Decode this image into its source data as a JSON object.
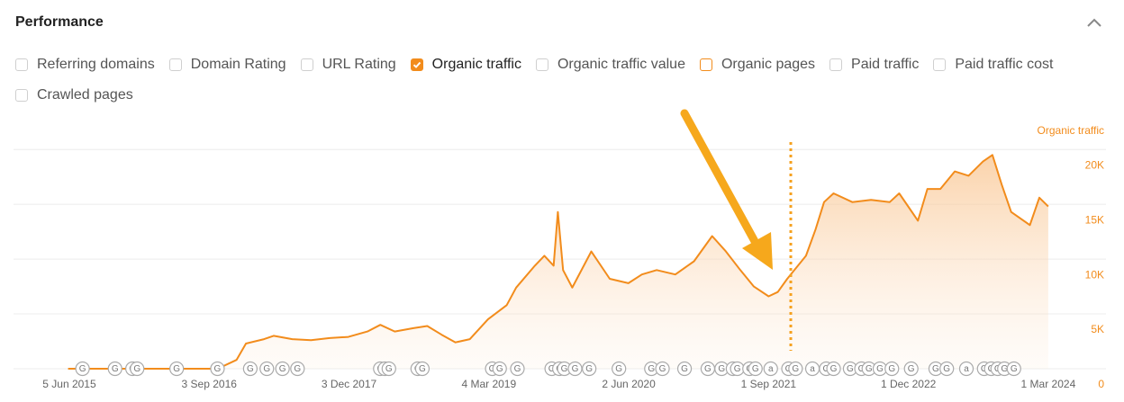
{
  "header": {
    "title": "Performance"
  },
  "filters": [
    {
      "label": "Referring domains",
      "checked": false
    },
    {
      "label": "Domain Rating",
      "checked": false
    },
    {
      "label": "URL Rating",
      "checked": false
    },
    {
      "label": "Organic traffic",
      "checked": true,
      "color": "#f28c1c"
    },
    {
      "label": "Organic traffic value",
      "checked": false
    },
    {
      "label": "Organic pages",
      "checked": false,
      "color": "#f28c1c"
    },
    {
      "label": "Paid traffic",
      "checked": false
    },
    {
      "label": "Paid traffic cost",
      "checked": false
    },
    {
      "label": "Crawled pages",
      "checked": false
    }
  ],
  "chart_data": {
    "type": "area",
    "x": [
      "2015-06-01",
      "2016-01-01",
      "2016-10-01",
      "2016-12-01",
      "2017-01-01",
      "2017-03-01",
      "2017-04-01",
      "2017-06-01",
      "2017-08-01",
      "2017-10-01",
      "2017-12-01",
      "2018-02-01",
      "2018-03-15",
      "2018-05-01",
      "2018-07-01",
      "2018-08-15",
      "2018-10-01",
      "2018-11-15",
      "2019-01-01",
      "2019-03-01",
      "2019-05-01",
      "2019-06-01",
      "2019-08-01",
      "2019-09-01",
      "2019-10-01",
      "2019-10-15",
      "2019-11-01",
      "2019-12-01",
      "2020-02-01",
      "2020-04-01",
      "2020-06-01",
      "2020-07-15",
      "2020-09-01",
      "2020-11-01",
      "2021-01-01",
      "2021-03-01",
      "2021-04-15",
      "2021-06-01",
      "2021-07-15",
      "2021-09-01",
      "2021-10-01",
      "2021-11-01",
      "2022-01-01",
      "2022-02-01",
      "2022-03-01",
      "2022-04-01",
      "2022-06-01",
      "2022-08-01",
      "2022-10-01",
      "2022-11-01",
      "2023-01-01",
      "2023-02-01",
      "2023-03-15",
      "2023-05-01",
      "2023-06-15",
      "2023-08-01",
      "2023-09-01",
      "2023-10-01",
      "2023-11-01",
      "2024-01-01",
      "2024-02-01",
      "2024-03-01"
    ],
    "series": [
      {
        "name": "Organic traffic",
        "color": "#f28c1c",
        "values": [
          0,
          0,
          0,
          800,
          2300,
          2700,
          3000,
          2700,
          2600,
          2800,
          2900,
          3400,
          4000,
          3400,
          3700,
          3900,
          3100,
          2400,
          2700,
          4500,
          5800,
          7400,
          9400,
          10300,
          9400,
          14300,
          9000,
          7400,
          10700,
          8200,
          7800,
          8600,
          9000,
          8600,
          9800,
          12100,
          10700,
          9000,
          7500,
          6600,
          7000,
          8200,
          10300,
          12700,
          15200,
          16000,
          15200,
          15400,
          15200,
          16000,
          13500,
          16400,
          16400,
          18000,
          17600,
          18900,
          19500,
          16800,
          14300,
          13100,
          15600,
          14800
        ]
      }
    ],
    "xlim": [
      "2014-12-05",
      "2024-03-13"
    ],
    "xticks": [
      {
        "value": "2015-06-05",
        "label": "5 Jun 2015"
      },
      {
        "value": "2016-09-03",
        "label": "3 Sep 2016"
      },
      {
        "value": "2017-12-03",
        "label": "3 Dec 2017"
      },
      {
        "value": "2019-03-04",
        "label": "4 Mar 2019"
      },
      {
        "value": "2020-06-02",
        "label": "2 Jun 2020"
      },
      {
        "value": "2021-09-01",
        "label": "1 Sep 2021"
      },
      {
        "value": "2022-12-01",
        "label": "1 Dec 2022"
      },
      {
        "value": "2024-03-01",
        "label": "1 Mar 2024"
      }
    ],
    "ylim": [
      0,
      21000
    ],
    "yticks": [
      0,
      {
        "value": 5000,
        "label": "5K"
      },
      {
        "value": 10000,
        "label": "10K"
      },
      {
        "value": 15000,
        "label": "15K"
      },
      {
        "value": 20000,
        "label": "20K"
      }
    ],
    "grid": true,
    "markers": [
      {
        "x": "2015-07-18",
        "label": "G"
      },
      {
        "x": "2015-11-01",
        "label": "G"
      },
      {
        "x": "2015-12-28",
        "label": "G"
      },
      {
        "x": "2016-01-12",
        "label": "G"
      },
      {
        "x": "2016-05-20",
        "label": "G"
      },
      {
        "x": "2016-09-30",
        "label": "G"
      },
      {
        "x": "2017-01-15",
        "label": "G"
      },
      {
        "x": "2017-03-10",
        "label": "G"
      },
      {
        "x": "2017-04-30",
        "label": "G"
      },
      {
        "x": "2017-06-18",
        "label": "G"
      },
      {
        "x": "2018-03-15",
        "label": "G"
      },
      {
        "x": "2018-03-30",
        "label": "G"
      },
      {
        "x": "2018-04-12",
        "label": "G"
      },
      {
        "x": "2018-07-15",
        "label": "G"
      },
      {
        "x": "2018-07-30",
        "label": "G"
      },
      {
        "x": "2019-03-15",
        "label": "G"
      },
      {
        "x": "2019-04-08",
        "label": "G"
      },
      {
        "x": "2019-06-05",
        "label": "G"
      },
      {
        "x": "2019-09-25",
        "label": "G"
      },
      {
        "x": "2019-10-20",
        "label": "G"
      },
      {
        "x": "2019-11-05",
        "label": "G"
      },
      {
        "x": "2019-12-10",
        "label": "G"
      },
      {
        "x": "2020-01-25",
        "label": "G"
      },
      {
        "x": "2020-05-01",
        "label": "G"
      },
      {
        "x": "2020-08-15",
        "label": "G"
      },
      {
        "x": "2020-09-20",
        "label": "G"
      },
      {
        "x": "2020-12-01",
        "label": "G"
      },
      {
        "x": "2021-02-15",
        "label": "G"
      },
      {
        "x": "2021-04-01",
        "label": "G"
      },
      {
        "x": "2021-05-08",
        "label": "G"
      },
      {
        "x": "2021-05-22",
        "label": "G"
      },
      {
        "x": "2021-07-01",
        "label": "G"
      },
      {
        "x": "2021-07-20",
        "label": "G"
      },
      {
        "x": "2021-09-08",
        "label": "a"
      },
      {
        "x": "2021-11-05",
        "label": "G"
      },
      {
        "x": "2021-11-28",
        "label": "G"
      },
      {
        "x": "2022-01-22",
        "label": "a"
      },
      {
        "x": "2022-03-08",
        "label": "G"
      },
      {
        "x": "2022-04-01",
        "label": "G"
      },
      {
        "x": "2022-05-25",
        "label": "G"
      },
      {
        "x": "2022-07-01",
        "label": "G"
      },
      {
        "x": "2022-07-25",
        "label": "G"
      },
      {
        "x": "2022-08-30",
        "label": "G"
      },
      {
        "x": "2022-10-08",
        "label": "G"
      },
      {
        "x": "2022-12-10",
        "label": "G"
      },
      {
        "x": "2023-02-28",
        "label": "G"
      },
      {
        "x": "2023-04-05",
        "label": "G"
      },
      {
        "x": "2023-06-08",
        "label": "a"
      },
      {
        "x": "2023-08-05",
        "label": "G"
      },
      {
        "x": "2023-08-28",
        "label": "G"
      },
      {
        "x": "2023-09-18",
        "label": "G"
      },
      {
        "x": "2023-10-10",
        "label": "G"
      },
      {
        "x": "2023-11-10",
        "label": "G"
      }
    ]
  }
}
